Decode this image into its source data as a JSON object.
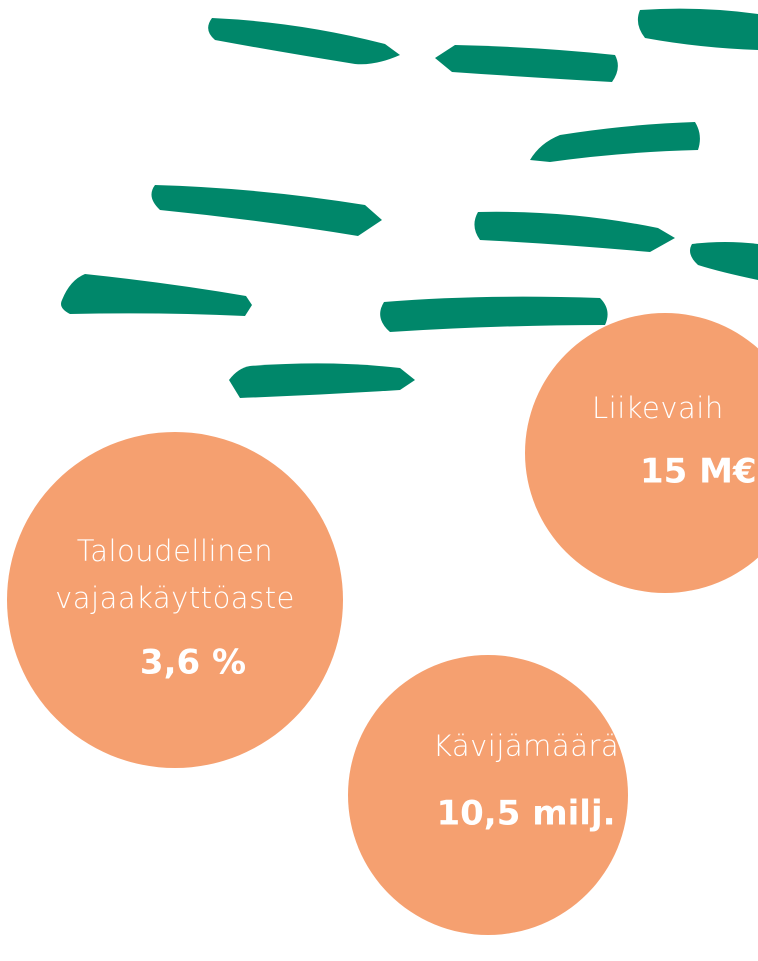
{
  "circles": [
    {
      "label": [
        "Taloudellinen",
        "vajaakäyttöaste"
      ],
      "value": "3,6 %"
    },
    {
      "label": [
        "Kävijämäärä"
      ],
      "value": "10,5 milj."
    },
    {
      "label": [
        "Liikevaih"
      ],
      "value": "15 M€"
    }
  ]
}
